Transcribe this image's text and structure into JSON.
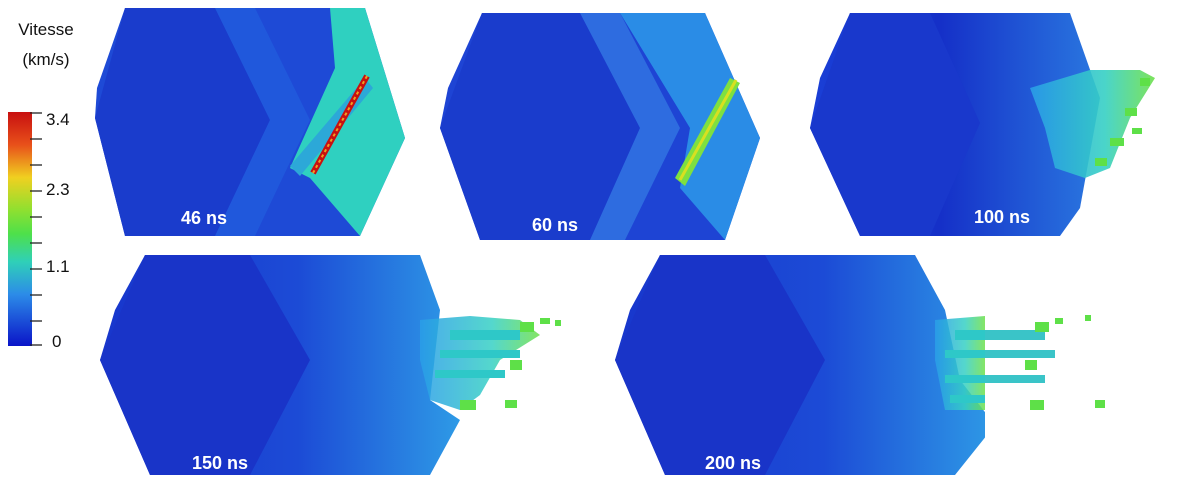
{
  "legend": {
    "title_line1": "Vitesse",
    "title_line2": "(km/s)",
    "unit": "km/s",
    "ticks": [
      "3.4",
      "2.3",
      "1.1",
      "0"
    ],
    "colors": {
      "min": "#0a14c8",
      "low": "#2c8be8",
      "mid": "#2fd0b8",
      "mid2": "#4ee04a",
      "high_mid": "#f0d020",
      "high": "#e8501a",
      "max": "#c81010"
    }
  },
  "panels": [
    {
      "time": "46 ns"
    },
    {
      "time": "60 ns"
    },
    {
      "time": "100 ns"
    },
    {
      "time": "150 ns"
    },
    {
      "time": "200 ns"
    }
  ]
}
